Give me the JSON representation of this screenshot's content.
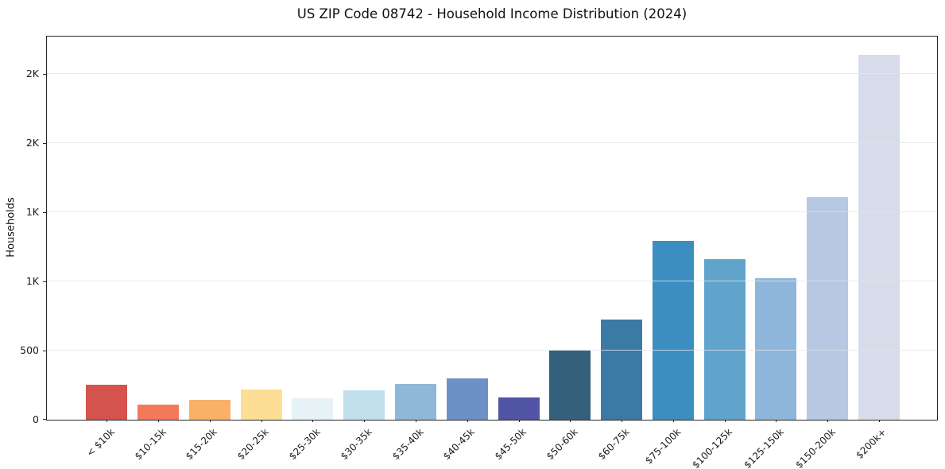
{
  "title": "US ZIP Code 08742 - Household Income Distribution (2024)",
  "chart_data": {
    "type": "bar",
    "title": "US ZIP Code 08742 - Household Income Distribution (2024)",
    "xlabel": "",
    "ylabel": "Households",
    "categories": [
      "< $10k",
      "$10-15k",
      "$15-20k",
      "$20-25k",
      "$25-30k",
      "$30-35k",
      "$35-40k",
      "$40-45k",
      "$45-50k",
      "$50-60k",
      "$60-75k",
      "$75-100k",
      "$100-125k",
      "$125-150k",
      "$150-200k",
      "$200k+"
    ],
    "values": [
      255,
      110,
      145,
      220,
      155,
      210,
      260,
      300,
      160,
      500,
      725,
      1295,
      1160,
      1025,
      1610,
      2640
    ],
    "bar_colors": [
      "#d5534d",
      "#f4795b",
      "#f9b168",
      "#fcdf94",
      "#e6f2f5",
      "#c0dfeb",
      "#8fb7d8",
      "#6d91c6",
      "#5254a6",
      "#34607b",
      "#3b7aa5",
      "#3d8ec0",
      "#61a4cb",
      "#8eb5da",
      "#b6c8e2",
      "#d8dbe9"
    ],
    "ylim": [
      0,
      2770
    ],
    "yticks": [
      {
        "value": 0,
        "label": "0"
      },
      {
        "value": 500,
        "label": "500"
      },
      {
        "value": 1000,
        "label": "1K"
      },
      {
        "value": 1500,
        "label": "1K"
      },
      {
        "value": 2000,
        "label": "2K"
      },
      {
        "value": 2500,
        "label": "2K"
      }
    ],
    "grid": "horizontal",
    "legend": "none"
  },
  "colors": {
    "background": "#ffffff",
    "spine": "#262626",
    "grid": "#e5e9ee",
    "text": "#1a1a1a"
  }
}
